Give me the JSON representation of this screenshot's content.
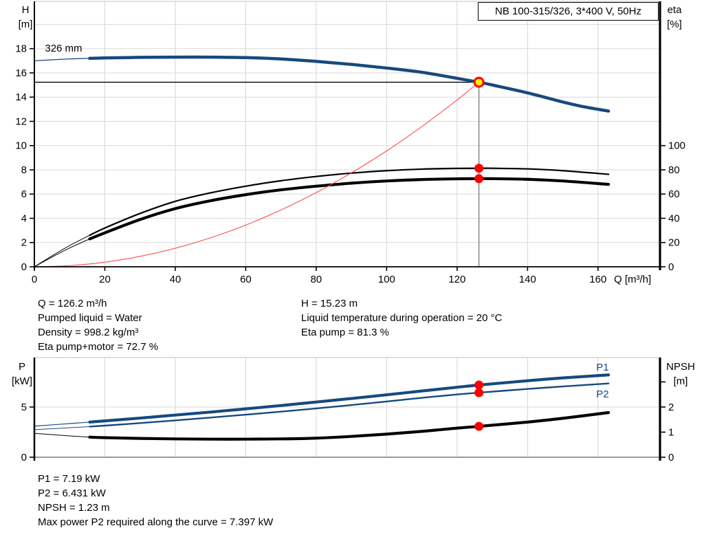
{
  "title_box": {
    "text": "NB 100-315/326, 3*400 V, 50Hz"
  },
  "axis_titles": {
    "h": [
      "H",
      "[m]"
    ],
    "eta": [
      "eta",
      "[%]"
    ],
    "p": [
      "P",
      "[kW]"
    ],
    "npsh": [
      "NPSH",
      "[m]"
    ]
  },
  "info_top": {
    "left": [
      "Q = 126.2 m³/h",
      "Pumped liquid = Water",
      "Density = 998.2 kg/m³",
      "Eta pump+motor = 72.7 %"
    ],
    "right": [
      "H = 15.23 m",
      "Liquid temperature during operation = 20 °C",
      "Eta pump = 81.3 %"
    ]
  },
  "info_bottom": [
    "P1 = 7.19 kW",
    "P2 = 6.431 kW",
    "NPSH = 1.23 m",
    "Max power P2 required along the curve = 7.397 kW"
  ],
  "colors": {
    "curve_blue": "#17497d",
    "curve_black": "#000000",
    "system_red": "#ff4d4d",
    "dot_red": "#ff0000",
    "op_yellow": "#ffed00",
    "grid": "#d9d9d9",
    "axis": "#000000",
    "drop_gray": "#7a7a7a"
  },
  "operating_point": {
    "Q": 126.2,
    "H": 15.23,
    "eta_pump": 81.3,
    "eta_pump_motor": 72.7,
    "P1": 7.19,
    "P2": 6.431,
    "NPSH": 1.23
  },
  "chart_data": [
    {
      "type": "line",
      "title": "QH curve with efficiency",
      "x": {
        "min": 0,
        "max": 177.6,
        "label": "Q [m³/h]",
        "ticks": [
          0,
          20,
          40,
          60,
          80,
          100,
          120,
          140,
          160
        ],
        "grid": [
          20,
          40,
          60,
          80,
          100,
          120,
          140,
          160
        ]
      },
      "y_left": {
        "min": 0,
        "max": 21.9,
        "ticks": [
          {
            "v": 0,
            "l": "0"
          },
          {
            "v": 2,
            "l": "2"
          },
          {
            "v": 4,
            "l": "4"
          },
          {
            "v": 6,
            "l": "6"
          },
          {
            "v": 8,
            "l": "8"
          },
          {
            "v": 10,
            "l": "10"
          },
          {
            "v": 12,
            "l": "12"
          },
          {
            "v": 14,
            "l": "14"
          },
          {
            "v": 16,
            "l": "16"
          },
          {
            "v": 18,
            "l": "18"
          }
        ],
        "grid": [
          2,
          4,
          6,
          8,
          10,
          12,
          14,
          16,
          18,
          20
        ]
      },
      "y_right": {
        "min": 0,
        "max": 219,
        "ticks": [
          {
            "v": 0,
            "l": "0"
          },
          {
            "v": 20,
            "l": "20"
          },
          {
            "v": 40,
            "l": "40"
          },
          {
            "v": 60,
            "l": "60"
          },
          {
            "v": 80,
            "l": "80"
          },
          {
            "v": 100,
            "l": "100"
          }
        ],
        "grid": []
      },
      "series": [
        {
          "name": "qh-curve",
          "axis": "left",
          "color": "curve_blue",
          "w_thin": 1.3,
          "w_thick": 4.5,
          "thin_until": 15.7,
          "points": [
            [
              0,
              17.0
            ],
            [
              5,
              17.08
            ],
            [
              10,
              17.15
            ],
            [
              15.7,
              17.2
            ],
            [
              20,
              17.23
            ],
            [
              30,
              17.28
            ],
            [
              40,
              17.3
            ],
            [
              50,
              17.3
            ],
            [
              60,
              17.26
            ],
            [
              70,
              17.15
            ],
            [
              80,
              16.95
            ],
            [
              90,
              16.7
            ],
            [
              100,
              16.4
            ],
            [
              110,
              16.05
            ],
            [
              120,
              15.55
            ],
            [
              126.2,
              15.23
            ],
            [
              130,
              15.0
            ],
            [
              140,
              14.35
            ],
            [
              150,
              13.6
            ],
            [
              156,
              13.2
            ],
            [
              163,
              12.85
            ]
          ]
        },
        {
          "name": "eta-pump-curve",
          "axis": "right",
          "color": "curve_black",
          "w_thin": 1,
          "w_thick": 2.2,
          "thin_until": 15.7,
          "points": [
            [
              0,
              0
            ],
            [
              5,
              9
            ],
            [
              10,
              17.5
            ],
            [
              15.7,
              26
            ],
            [
              20,
              32
            ],
            [
              30,
              44
            ],
            [
              40,
              54
            ],
            [
              50,
              61
            ],
            [
              60,
              66.5
            ],
            [
              70,
              71
            ],
            [
              80,
              74.5
            ],
            [
              90,
              77.3
            ],
            [
              100,
              79.3
            ],
            [
              110,
              80.6
            ],
            [
              120,
              81.2
            ],
            [
              126.2,
              81.3
            ],
            [
              130,
              81.3
            ],
            [
              140,
              80.8
            ],
            [
              150,
              79.3
            ],
            [
              163,
              76.3
            ]
          ]
        },
        {
          "name": "eta-pump-motor-curve",
          "axis": "right",
          "color": "curve_black",
          "w_thin": 1,
          "w_thick": 4.2,
          "thin_until": 15.7,
          "points": [
            [
              0,
              0
            ],
            [
              5,
              8
            ],
            [
              10,
              15.5
            ],
            [
              15.7,
              23
            ],
            [
              20,
              28
            ],
            [
              30,
              39
            ],
            [
              40,
              48
            ],
            [
              50,
              54.5
            ],
            [
              60,
              59.5
            ],
            [
              70,
              63.5
            ],
            [
              80,
              66.5
            ],
            [
              90,
              69
            ],
            [
              100,
              70.8
            ],
            [
              110,
              72
            ],
            [
              120,
              72.6
            ],
            [
              126.2,
              72.7
            ],
            [
              130,
              72.7
            ],
            [
              140,
              72.2
            ],
            [
              150,
              70.8
            ],
            [
              163,
              68
            ]
          ]
        },
        {
          "name": "system-curve",
          "axis": "left",
          "color": "system_red",
          "w_thin": 1.1,
          "w_thick": 1.1,
          "thin_until": 999,
          "points": [
            [
              0,
              0
            ],
            [
              10,
              0.1
            ],
            [
              20,
              0.38
            ],
            [
              30,
              0.86
            ],
            [
              40,
              1.53
            ],
            [
              50,
              2.39
            ],
            [
              60,
              3.44
            ],
            [
              70,
              4.69
            ],
            [
              80,
              6.12
            ],
            [
              90,
              7.75
            ],
            [
              100,
              9.56
            ],
            [
              110,
              11.57
            ],
            [
              120,
              13.77
            ],
            [
              126.2,
              15.23
            ]
          ]
        }
      ],
      "lines": [
        {
          "name": "duty-head-line",
          "axis": "left",
          "from": [
            0,
            15.23
          ],
          "to": [
            126.2,
            15.23
          ],
          "color": "axis",
          "w": 1.3
        },
        {
          "name": "duty-flow-line",
          "axis": "left",
          "from": [
            126.2,
            0
          ],
          "to": [
            126.2,
            15.23
          ],
          "color": "drop_gray",
          "w": 1.3
        }
      ],
      "markers": [
        {
          "name": "operating-point",
          "axis": "left",
          "q": 126.2,
          "v": 15.23,
          "style": "op"
        },
        {
          "name": "eta-pump-point",
          "axis": "right",
          "q": 126.2,
          "v": 81.3,
          "style": "dot"
        },
        {
          "name": "eta-pump-motor-point",
          "axis": "right",
          "q": 126.2,
          "v": 72.7,
          "style": "dot"
        }
      ],
      "labels": [
        {
          "name": "impeller-size-label",
          "text": "326 mm",
          "axis": "left",
          "q": 3,
          "v": 17.75,
          "color": "curve_black"
        }
      ]
    },
    {
      "type": "line",
      "title": "Power and NPSH curves",
      "x": {
        "min": 0,
        "max": 177.6,
        "label": "",
        "ticks": [],
        "grid": [
          20,
          40,
          60,
          80,
          100,
          120,
          140,
          160
        ]
      },
      "y_left": {
        "min": 0,
        "max": 9.93,
        "ticks": [
          {
            "v": 0,
            "l": "0"
          },
          {
            "v": 5,
            "l": "5"
          }
        ],
        "grid": [
          5
        ]
      },
      "y_right": {
        "min": 0,
        "max": 3.97,
        "ticks": [
          {
            "v": 0,
            "l": "0"
          },
          {
            "v": 1,
            "l": "1"
          },
          {
            "v": 2,
            "l": "2"
          },
          {
            "v": 3,
            "l": ""
          }
        ],
        "grid": []
      },
      "series": [
        {
          "name": "p1-curve",
          "axis": "left",
          "color": "curve_blue",
          "w_thin": 1.2,
          "w_thick": 4.2,
          "thin_until": 15.7,
          "points": [
            [
              0,
              3.1
            ],
            [
              8,
              3.3
            ],
            [
              15.7,
              3.5
            ],
            [
              20,
              3.62
            ],
            [
              30,
              3.9
            ],
            [
              40,
              4.2
            ],
            [
              50,
              4.5
            ],
            [
              60,
              4.82
            ],
            [
              70,
              5.15
            ],
            [
              80,
              5.5
            ],
            [
              90,
              5.85
            ],
            [
              100,
              6.22
            ],
            [
              110,
              6.6
            ],
            [
              120,
              6.97
            ],
            [
              126.2,
              7.19
            ],
            [
              140,
              7.62
            ],
            [
              150,
              7.9
            ],
            [
              163,
              8.2
            ]
          ]
        },
        {
          "name": "p2-curve",
          "axis": "left",
          "color": "curve_blue",
          "w_thin": 1,
          "w_thick": 2.4,
          "thin_until": 15.7,
          "points": [
            [
              0,
              2.75
            ],
            [
              8,
              2.9
            ],
            [
              15.7,
              3.05
            ],
            [
              20,
              3.15
            ],
            [
              30,
              3.4
            ],
            [
              40,
              3.67
            ],
            [
              50,
              3.95
            ],
            [
              60,
              4.24
            ],
            [
              70,
              4.54
            ],
            [
              80,
              4.86
            ],
            [
              90,
              5.2
            ],
            [
              100,
              5.55
            ],
            [
              110,
              5.92
            ],
            [
              120,
              6.25
            ],
            [
              126.2,
              6.431
            ],
            [
              140,
              6.8
            ],
            [
              150,
              7.05
            ],
            [
              163,
              7.35
            ]
          ]
        },
        {
          "name": "npsh-curve",
          "axis": "right",
          "color": "curve_black",
          "w_thin": 1,
          "w_thick": 4.2,
          "thin_until": 15.7,
          "points": [
            [
              0,
              0.95
            ],
            [
              10,
              0.85
            ],
            [
              15.7,
              0.8
            ],
            [
              20,
              0.78
            ],
            [
              30,
              0.75
            ],
            [
              40,
              0.73
            ],
            [
              50,
              0.72
            ],
            [
              60,
              0.72
            ],
            [
              70,
              0.73
            ],
            [
              80,
              0.76
            ],
            [
              90,
              0.83
            ],
            [
              100,
              0.92
            ],
            [
              110,
              1.03
            ],
            [
              120,
              1.16
            ],
            [
              126.2,
              1.23
            ],
            [
              140,
              1.4
            ],
            [
              150,
              1.55
            ],
            [
              163,
              1.78
            ]
          ]
        }
      ],
      "lines": [],
      "markers": [
        {
          "name": "p1-point",
          "axis": "left",
          "q": 126.2,
          "v": 7.19,
          "style": "dot"
        },
        {
          "name": "p2-point",
          "axis": "left",
          "q": 126.2,
          "v": 6.431,
          "style": "dot"
        },
        {
          "name": "npsh-point",
          "axis": "right",
          "q": 126.2,
          "v": 1.23,
          "style": "dot"
        }
      ],
      "labels": [
        {
          "name": "p1-curve-label",
          "text": "P1",
          "axis": "left",
          "q": 159.5,
          "v": 8.63,
          "color": "curve_blue"
        },
        {
          "name": "p2-curve-label",
          "text": "P2",
          "axis": "left",
          "q": 159.5,
          "v": 5.96,
          "color": "curve_blue"
        }
      ]
    }
  ]
}
